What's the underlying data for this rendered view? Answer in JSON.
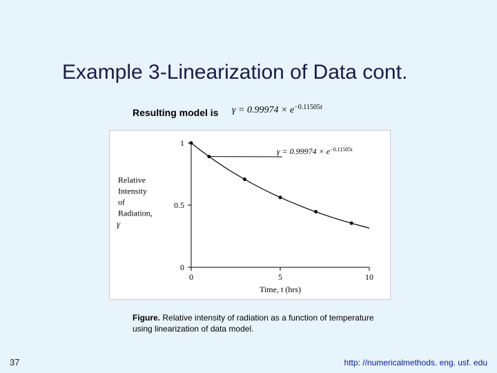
{
  "slide": {
    "title": "Example 3-Linearization of Data cont.",
    "subtitle_prefix": "Resulting model is",
    "equation": {
      "lhs": "γ",
      "coeff": "0.99974",
      "exp_coeff": "−0.11505",
      "var": "t"
    },
    "caption_label": "Figure.",
    "caption_text": "Relative intensity of radiation as a function of temperature using linearization of data model.",
    "page_number": "37",
    "footer_url": "http: //numericalmethods. eng. usf. edu"
  },
  "chart": {
    "type": "line",
    "background_color": "#ffffff",
    "plot_border_color": "#000000",
    "axis_color": "#000000",
    "line_color": "#000000",
    "marker_color": "#000000",
    "marker_size": 2.5,
    "line_width": 1.2,
    "pointer_color": "#000000",
    "xlabel": "Time, t (hrs)",
    "ylabel_lines": [
      "Relative",
      "Intensity",
      "of",
      "Radiation,"
    ],
    "ylabel_symbol": "γ",
    "xlim": [
      0,
      10
    ],
    "ylim": [
      0,
      1
    ],
    "xticks": [
      0,
      5,
      10
    ],
    "yticks": [
      0,
      0.5,
      1
    ],
    "label_fontsize": 12,
    "tick_fontsize": 12,
    "annotation_eq": "γ = 0.99974 × e",
    "annotation_exp": "−0.11505t",
    "data_points": [
      {
        "t": 0,
        "y": 1.0
      },
      {
        "t": 1,
        "y": 0.891
      },
      {
        "t": 3,
        "y": 0.708
      },
      {
        "t": 5,
        "y": 0.562
      },
      {
        "t": 7,
        "y": 0.447
      },
      {
        "t": 9,
        "y": 0.355
      }
    ],
    "curve_samples": [
      {
        "t": 0.0,
        "y": 0.99974
      },
      {
        "t": 0.5,
        "y": 0.94378
      },
      {
        "t": 1.0,
        "y": 0.89097
      },
      {
        "t": 1.5,
        "y": 0.8411
      },
      {
        "t": 2.0,
        "y": 0.79402
      },
      {
        "t": 2.5,
        "y": 0.74958
      },
      {
        "t": 3.0,
        "y": 0.70762
      },
      {
        "t": 3.5,
        "y": 0.66801
      },
      {
        "t": 4.0,
        "y": 0.63062
      },
      {
        "t": 4.5,
        "y": 0.59532
      },
      {
        "t": 5.0,
        "y": 0.562
      },
      {
        "t": 5.5,
        "y": 0.53054
      },
      {
        "t": 6.0,
        "y": 0.50085
      },
      {
        "t": 6.5,
        "y": 0.47282
      },
      {
        "t": 7.0,
        "y": 0.44636
      },
      {
        "t": 7.5,
        "y": 0.42138
      },
      {
        "t": 8.0,
        "y": 0.39779
      },
      {
        "t": 8.5,
        "y": 0.37553
      },
      {
        "t": 9.0,
        "y": 0.35451
      },
      {
        "t": 9.5,
        "y": 0.33467
      },
      {
        "t": 10.0,
        "y": 0.31594
      }
    ]
  }
}
